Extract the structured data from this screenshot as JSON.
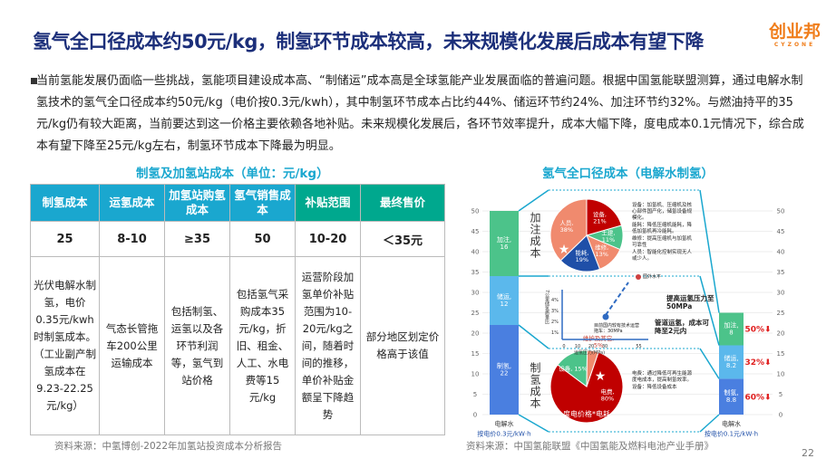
{
  "title": "氢气全口径成本约50元/kg，制氢环节成本较高，未来规模化发展后成本有望下降",
  "logo": {
    "text": "创业邦",
    "sub": "CYZONE"
  },
  "paragraph": "当前氢能发展仍面临一些挑战，氢能项目建设成本高、“制储运”成本高是全球氢能产业发展面临的普遍问题。根据中国氢能联盟测算，通过电解水制氢技术的氢气全口径成本约50元/kg（电价按0.3元/kwh），其中制氢环节成本占比约44%、储运环节约24%、加注环节约32%。与燃油持平的35元/kg仍有较大距离，当前要达到这一价格主要依赖各地补贴。未来规模化发展后，各环节效率提升，成本大幅下降，度电成本0.1元情况下，综合成本有望下降至25元/kg左右，制氢环节成本下降最为明显。",
  "left": {
    "title": "制氢及加氢站成本（单位：元/kg）",
    "headers": [
      "制氢成本",
      "运氢成本",
      "加氢站购氢成本",
      "氢气销售成本",
      "补贴范围",
      "最终售价"
    ],
    "values": [
      "25",
      "8-10",
      "≥35",
      "50",
      "10-20",
      "＜35元"
    ],
    "details": [
      "光伏电解水制氢，电价0.35元/kwh时制氢成本。（工业副产制氢成本在9.23-22.25元/kg）",
      "气态长管拖车200公里运输成本",
      "包括制氢、运氢以及各环节利润等，氢气到站价格",
      "包括氢气采购成本35元/kg，折旧、租金、人工、水电费等15元/kg",
      "运营阶段加氢单价补贴范围为10-20元/kg之间，随着时间的推移，单价补贴金额呈下降趋势",
      "部分地区划定价格高于该值"
    ],
    "source": "资料来源：中氢博创-2022年加氢站投资成本分析报告"
  },
  "right": {
    "title": "氢气全口径成本（电解水制氢）",
    "axis_ticks": [
      "0",
      "5",
      "10",
      "15",
      "20",
      "25",
      "30",
      "35",
      "40",
      "45",
      "50"
    ],
    "left_bar": {
      "label": "电解水",
      "sub": "按电价0.3元/kW·h",
      "segments": [
        {
          "name": "制氢",
          "value": 22,
          "label": "制氢,\n22"
        },
        {
          "name": "储运",
          "value": 12,
          "label": "储运,\n12"
        },
        {
          "name": "加注",
          "value": 16,
          "label": "加注,\n16"
        }
      ]
    },
    "right_bar": {
      "label": "电解水",
      "sub": "按电价0.1元/kW·h",
      "segments": [
        {
          "name": "制氢",
          "value": 8.8,
          "label": "制氢,\n8.8",
          "drop": "60%"
        },
        {
          "name": "储运",
          "value": 8.2,
          "label": "储运,\n8.2",
          "drop": "32%"
        },
        {
          "name": "加注",
          "value": 8,
          "label": "加注,\n8",
          "drop": "50%"
        }
      ]
    },
    "add_label": "加注成本",
    "add_pie": [
      {
        "label": "设备,\n21%",
        "value": 21,
        "color": "#c00000"
      },
      {
        "label": "土建,\n11%",
        "value": 11,
        "color": "#4cc38a"
      },
      {
        "label": "维修,\n13%",
        "value": 13,
        "color": "#f08a6e"
      },
      {
        "label": "能耗,\n19%",
        "value": 19,
        "color": "#1f4fa8"
      },
      {
        "label": "人员,\n38%",
        "value": 38,
        "color": "#f08a6e"
      }
    ],
    "add_notes": [
      "设备：加氢机、压缩机及核心部件国产化，储氢设备规模化。",
      "能耗：降低压缩机能耗，降低加氢机再冷能耗。",
      "维修：提高压缩机与加氢机可靠性",
      "人员：智能化控制实现无人或少人。"
    ],
    "trans": {
      "ylabel": "7公里储氢质量比",
      "yticks": [
        "1%",
        "2%",
        "3%",
        "4%"
      ],
      "xticks": [
        "0",
        "10",
        "20",
        "30",
        "55"
      ],
      "xlabel": "运氢压力(MPa)",
      "p1": "目前国内较有技术运营拖车：30MPa",
      "p2": "国外水平",
      "note1": "提高运氢压力至50MPa",
      "note2": "管道运氢，成本可降至2元内"
    },
    "prod_label": "制氢成本",
    "prod_pie": [
      {
        "label": "电费,\n80%",
        "value": 80,
        "color": "#c00000"
      },
      {
        "label": "设备, 15%",
        "value": 15,
        "color": "#4cc38a"
      },
      {
        "label": "维护及其它,\n5%",
        "value": 5,
        "color": "#f08a6e"
      }
    ],
    "prod_pie_caption": "度电价格*电耗",
    "prod_notes": [
      "电费：通过降低可再生能源度电成本，提高制氢效率。",
      "设备：降低设备成本"
    ],
    "source": "资料来源：中国氢能联盟《中国氢能及燃料电池产业手册》"
  },
  "page_number": "22",
  "colors": {
    "title": "#1c2f7a",
    "header_blue": "#1aa7cf",
    "header_green": "#00a88e",
    "accent": "#f07d1a",
    "drop": "#e02020"
  }
}
